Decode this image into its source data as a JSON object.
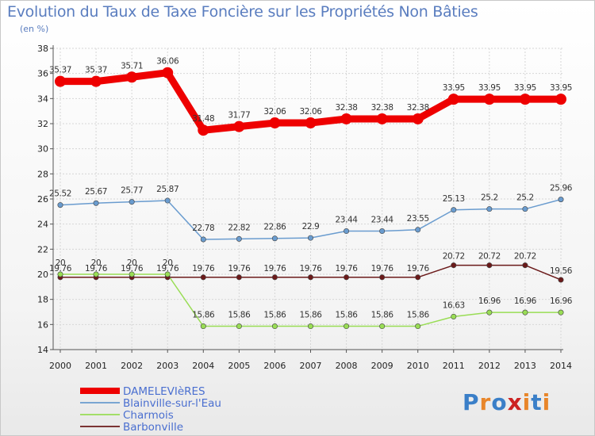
{
  "chart_data": {
    "type": "line",
    "title": "Evolution du Taux de Taxe Foncière sur les Propriétés Non Bâties",
    "ylabel": "(en %)",
    "xlabel": "",
    "ylim": [
      14,
      38
    ],
    "yticks": [
      14,
      16,
      18,
      20,
      22,
      24,
      26,
      28,
      30,
      32,
      34,
      36,
      38
    ],
    "categories": [
      "2000",
      "2001",
      "2002",
      "2003",
      "2004",
      "2005",
      "2006",
      "2007",
      "2008",
      "2009",
      "2010",
      "2011",
      "2012",
      "2013",
      "2014"
    ],
    "series": [
      {
        "name": "DAMELEVIèRES",
        "color": "#ee0000",
        "values": [
          35.37,
          35.37,
          35.71,
          36.06,
          31.48,
          31.77,
          32.06,
          32.06,
          32.38,
          32.38,
          32.38,
          33.95,
          33.95,
          33.95,
          33.95
        ],
        "labels": [
          "35.37",
          "35.37",
          "35.71",
          "36.06",
          "31.48",
          "31.77",
          "32.06",
          "32.06",
          "32.38",
          "32.38",
          "32.38",
          "33.95",
          "33.95",
          "33.95",
          "33.95"
        ]
      },
      {
        "name": "Blainville-sur-l'Eau",
        "color": "#6a9ccf",
        "values": [
          25.52,
          25.67,
          25.77,
          25.87,
          22.78,
          22.82,
          22.86,
          22.9,
          23.44,
          23.44,
          23.55,
          25.13,
          25.2,
          25.2,
          25.96
        ],
        "labels": [
          "25.52",
          "25.67",
          "25.77",
          "25.87",
          "22.78",
          "22.82",
          "22.86",
          "22.9",
          "23.44",
          "23.44",
          "23.55",
          "25.13",
          "25.2",
          "25.2",
          "25.96"
        ]
      },
      {
        "name": "Charmois",
        "color": "#99dd55",
        "values": [
          20,
          20,
          20,
          20,
          15.86,
          15.86,
          15.86,
          15.86,
          15.86,
          15.86,
          15.86,
          16.63,
          16.96,
          16.96,
          16.96
        ],
        "labels": [
          "20",
          "20",
          "20",
          "20",
          "15.86",
          "15.86",
          "15.86",
          "15.86",
          "15.86",
          "15.86",
          "15.86",
          "16.63",
          "16.96",
          "16.96",
          "16.96"
        ]
      },
      {
        "name": "Barbonville",
        "color": "#6b1a1a",
        "values": [
          19.76,
          19.76,
          19.76,
          19.76,
          19.76,
          19.76,
          19.76,
          19.76,
          19.76,
          19.76,
          19.76,
          20.72,
          20.72,
          20.72,
          19.56
        ],
        "labels": [
          "19.76",
          "19.76",
          "19.76",
          "19.76",
          "19.76",
          "19.76",
          "19.76",
          "19.76",
          "19.76",
          "19.76",
          "19.76",
          "20.72",
          "20.72",
          "20.72",
          "19.56"
        ]
      }
    ]
  },
  "logo": {
    "text": "Proxiti",
    "letters": [
      "P",
      "r",
      "o",
      "x",
      "i",
      "t",
      "i"
    ],
    "colors": [
      "#3a7fc8",
      "#e8862a",
      "#3a7fc8",
      "#cc2222",
      "#e8862a",
      "#3a7fc8",
      "#e8862a"
    ]
  }
}
